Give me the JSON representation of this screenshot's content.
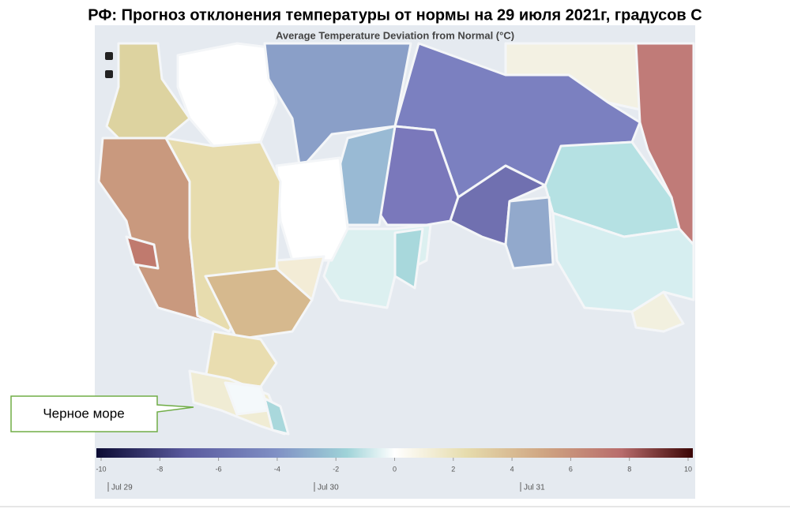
{
  "header": {
    "title": "РФ: Прогноз отклонения температуры от нормы на 29 июля 2021г, градусов С"
  },
  "map": {
    "title": "Average Temperature Deviation from Normal (°C)",
    "colorbar": {
      "range": [
        -10,
        10
      ],
      "ticks": [
        -10,
        -8,
        -6,
        -4,
        -2,
        0,
        2,
        4,
        6,
        8,
        10
      ]
    },
    "timeline": [
      "Jul 29",
      "Jul 30",
      "Jul 31"
    ]
  },
  "callout": {
    "label": "Черное море"
  }
}
